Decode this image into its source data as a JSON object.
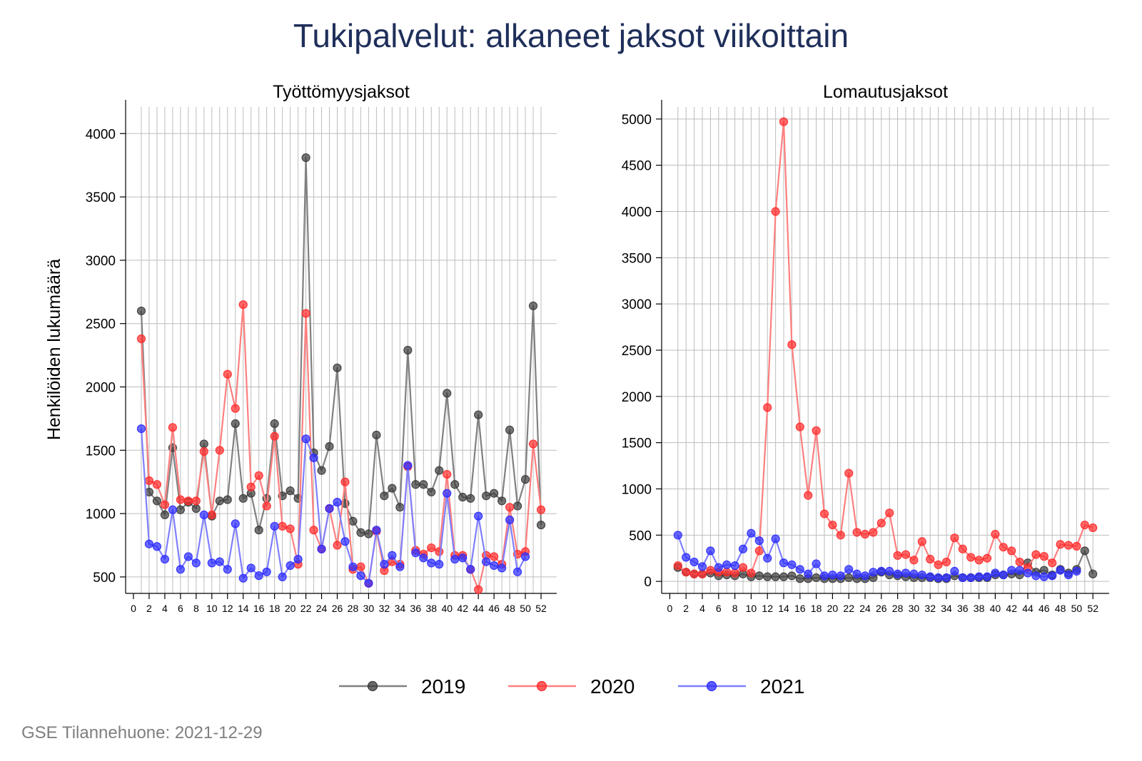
{
  "title": "Tukipalvelut: alkaneet jaksot viikoittain",
  "footer": "GSE Tilannehuone: 2021-12-29",
  "legend": [
    {
      "name": "2019",
      "color": "#3a3a3a",
      "line": "#808080"
    },
    {
      "name": "2020",
      "color": "#ff2a2a",
      "line": "#ff7f7f"
    },
    {
      "name": "2021",
      "color": "#2a2aff",
      "line": "#7f7fff"
    }
  ],
  "chart_data": [
    {
      "type": "line",
      "title": "Työttömyysjaksot",
      "ylabel": "Henkilöiden lukumäärä",
      "xlabel": "",
      "xlim": [
        -1,
        54
      ],
      "ylim": [
        370,
        4210
      ],
      "xticks": [
        0,
        2,
        4,
        6,
        8,
        10,
        12,
        14,
        16,
        18,
        20,
        22,
        24,
        26,
        28,
        30,
        32,
        34,
        36,
        38,
        40,
        42,
        44,
        46,
        48,
        50,
        52
      ],
      "yticks": [
        500,
        1000,
        1500,
        2000,
        2500,
        3000,
        3500,
        4000
      ],
      "grid": true,
      "series": [
        {
          "name": "2019",
          "x": [
            1,
            2,
            3,
            4,
            5,
            6,
            7,
            8,
            9,
            10,
            11,
            12,
            13,
            14,
            15,
            16,
            17,
            18,
            19,
            20,
            21,
            22,
            23,
            24,
            25,
            26,
            27,
            28,
            29,
            30,
            31,
            32,
            33,
            34,
            35,
            36,
            37,
            38,
            39,
            40,
            41,
            42,
            43,
            44,
            45,
            46,
            47,
            48,
            49,
            50,
            51,
            52
          ],
          "values": [
            2600,
            1170,
            1100,
            990,
            1520,
            1030,
            1090,
            1040,
            1550,
            980,
            1100,
            1110,
            1710,
            1120,
            1160,
            870,
            1120,
            1710,
            1140,
            1180,
            1120,
            3810,
            1480,
            1340,
            1530,
            2150,
            1080,
            940,
            850,
            840,
            1620,
            1140,
            1200,
            1050,
            2290,
            1230,
            1230,
            1170,
            1340,
            1950,
            1230,
            1130,
            1120,
            1780,
            1140,
            1160,
            1100,
            1660,
            1060,
            1270,
            2640,
            910
          ]
        },
        {
          "name": "2020",
          "x": [
            1,
            2,
            3,
            4,
            5,
            6,
            7,
            8,
            9,
            10,
            11,
            12,
            13,
            14,
            15,
            16,
            17,
            18,
            19,
            20,
            21,
            22,
            23,
            24,
            25,
            26,
            27,
            28,
            29,
            30,
            31,
            32,
            33,
            34,
            35,
            36,
            37,
            38,
            39,
            40,
            41,
            42,
            43,
            44,
            45,
            46,
            47,
            48,
            49,
            50,
            51,
            52
          ],
          "values": [
            2380,
            1260,
            1230,
            1070,
            1680,
            1110,
            1100,
            1100,
            1490,
            990,
            1500,
            2100,
            1830,
            2650,
            1210,
            1300,
            1060,
            1610,
            900,
            880,
            600,
            2580,
            870,
            720,
            1040,
            750,
            1250,
            560,
            580,
            450,
            860,
            550,
            620,
            600,
            1370,
            710,
            680,
            730,
            700,
            1310,
            670,
            670,
            560,
            400,
            670,
            660,
            600,
            1050,
            680,
            700,
            1550,
            1030
          ]
        },
        {
          "name": "2021",
          "x": [
            1,
            2,
            3,
            4,
            5,
            6,
            7,
            8,
            9,
            10,
            11,
            12,
            13,
            14,
            15,
            16,
            17,
            18,
            19,
            20,
            21,
            22,
            23,
            24,
            25,
            26,
            27,
            28,
            29,
            30,
            31,
            32,
            33,
            34,
            35,
            36,
            37,
            38,
            39,
            40,
            41,
            42,
            43,
            44,
            45,
            46,
            47,
            48,
            49,
            50
          ],
          "values": [
            1670,
            760,
            740,
            640,
            1030,
            560,
            660,
            610,
            990,
            610,
            620,
            560,
            920,
            490,
            570,
            510,
            540,
            900,
            500,
            590,
            640,
            1590,
            1440,
            720,
            1040,
            1090,
            780,
            580,
            510,
            450,
            870,
            600,
            670,
            580,
            1380,
            690,
            650,
            610,
            600,
            1160,
            640,
            650,
            560,
            980,
            620,
            590,
            570,
            950,
            540,
            660
          ]
        }
      ]
    },
    {
      "type": "line",
      "title": "Lomautusjaksot",
      "ylabel": "",
      "xlabel": "",
      "xlim": [
        -1,
        54
      ],
      "ylim": [
        -130,
        5130
      ],
      "xticks": [
        0,
        2,
        4,
        6,
        8,
        10,
        12,
        14,
        16,
        18,
        20,
        22,
        24,
        26,
        28,
        30,
        32,
        34,
        36,
        38,
        40,
        42,
        44,
        46,
        48,
        50,
        52
      ],
      "yticks": [
        0,
        500,
        1000,
        1500,
        2000,
        2500,
        3000,
        3500,
        4000,
        4500,
        5000
      ],
      "grid": true,
      "series": [
        {
          "name": "2019",
          "x": [
            1,
            2,
            3,
            4,
            5,
            6,
            7,
            8,
            9,
            10,
            11,
            12,
            13,
            14,
            15,
            16,
            17,
            18,
            19,
            20,
            21,
            22,
            23,
            24,
            25,
            26,
            27,
            28,
            29,
            30,
            31,
            32,
            33,
            34,
            35,
            36,
            37,
            38,
            39,
            40,
            41,
            42,
            43,
            44,
            45,
            46,
            47,
            48,
            49,
            50,
            51,
            52
          ],
          "values": [
            150,
            100,
            80,
            80,
            90,
            60,
            70,
            60,
            80,
            50,
            60,
            50,
            50,
            50,
            60,
            30,
            30,
            40,
            30,
            30,
            30,
            40,
            30,
            30,
            40,
            100,
            70,
            60,
            50,
            40,
            40,
            40,
            30,
            30,
            60,
            40,
            40,
            40,
            40,
            70,
            70,
            80,
            70,
            200,
            100,
            120,
            70,
            130,
            90,
            130,
            330,
            80
          ]
        },
        {
          "name": "2020",
          "x": [
            1,
            2,
            3,
            4,
            5,
            6,
            7,
            8,
            9,
            10,
            11,
            12,
            13,
            14,
            15,
            16,
            17,
            18,
            19,
            20,
            21,
            22,
            23,
            24,
            25,
            26,
            27,
            28,
            29,
            30,
            31,
            32,
            33,
            34,
            35,
            36,
            37,
            38,
            39,
            40,
            41,
            42,
            43,
            44,
            45,
            46,
            47,
            48,
            49,
            50,
            51,
            52
          ],
          "values": [
            170,
            100,
            80,
            80,
            120,
            100,
            100,
            90,
            150,
            90,
            330,
            1880,
            4000,
            4970,
            2560,
            1670,
            930,
            1630,
            730,
            610,
            500,
            1170,
            530,
            510,
            530,
            630,
            740,
            280,
            290,
            230,
            430,
            240,
            180,
            210,
            470,
            350,
            260,
            230,
            250,
            510,
            370,
            330,
            210,
            150,
            290,
            270,
            200,
            400,
            390,
            380,
            610,
            580
          ]
        },
        {
          "name": "2021",
          "x": [
            1,
            2,
            3,
            4,
            5,
            6,
            7,
            8,
            9,
            10,
            11,
            12,
            13,
            14,
            15,
            16,
            17,
            18,
            19,
            20,
            21,
            22,
            23,
            24,
            25,
            26,
            27,
            28,
            29,
            30,
            31,
            32,
            33,
            34,
            35,
            36,
            37,
            38,
            39,
            40,
            41,
            42,
            43,
            44,
            45,
            46,
            47,
            48,
            49,
            50
          ],
          "values": [
            500,
            260,
            210,
            160,
            330,
            150,
            180,
            170,
            350,
            520,
            440,
            250,
            460,
            200,
            180,
            130,
            80,
            190,
            60,
            70,
            60,
            130,
            80,
            60,
            100,
            110,
            110,
            80,
            90,
            80,
            70,
            50,
            40,
            40,
            110,
            40,
            40,
            50,
            50,
            90,
            70,
            120,
            120,
            90,
            60,
            50,
            60,
            120,
            70,
            110
          ]
        }
      ]
    }
  ]
}
